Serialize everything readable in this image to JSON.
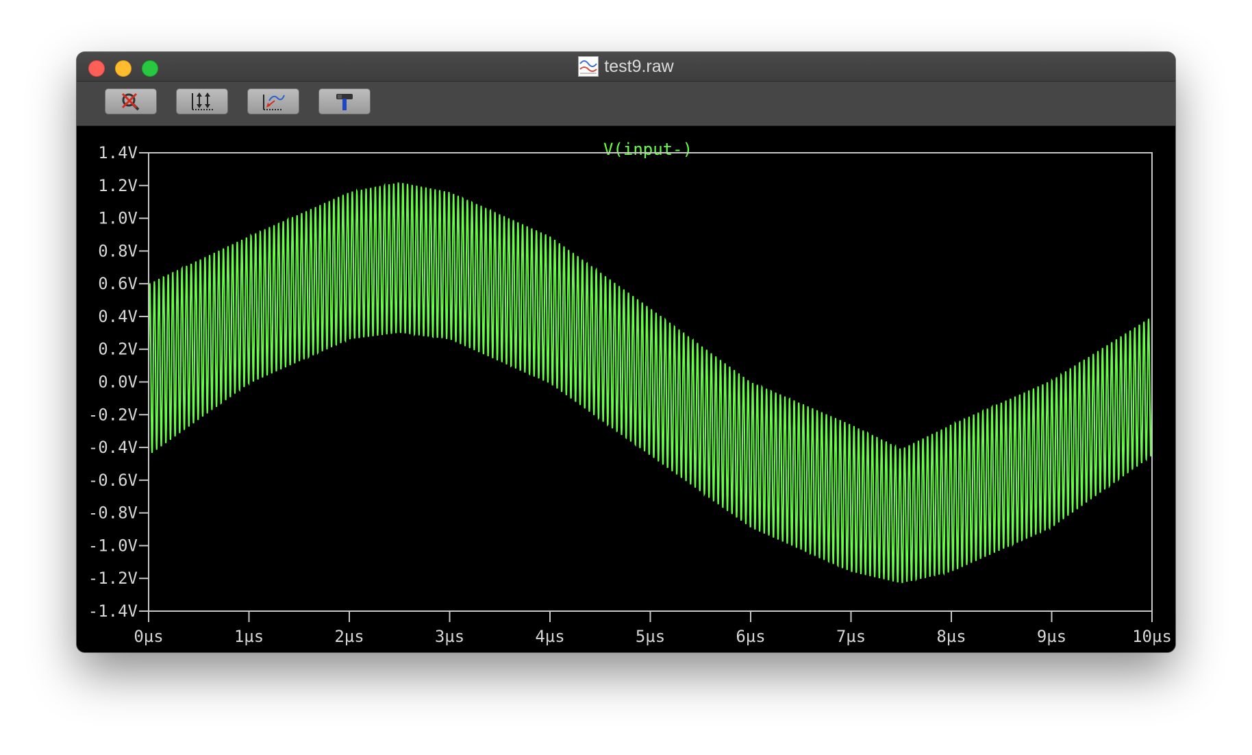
{
  "window": {
    "title": "test9.raw"
  },
  "toolbar": {
    "buttons": [
      {
        "name": "zoom-cancel-button",
        "icon": "zoom-cancel-icon"
      },
      {
        "name": "autorange-button",
        "icon": "autorange-icon"
      },
      {
        "name": "pan-button",
        "icon": "pan-icon"
      },
      {
        "name": "settings-button",
        "icon": "hammer-icon"
      }
    ]
  },
  "colors": {
    "trace": "#66ff44",
    "axis": "#c8c8c8",
    "label": "#d8d8d8",
    "background": "#000000"
  },
  "chart_data": {
    "type": "line",
    "title": "V(input-)",
    "series": [
      {
        "name": "V(input-)",
        "description": "sine envelope 0.75V amplitude, 100kHz, plus high-frequency ripple amplitude ~0.45V",
        "x_unit": "µs",
        "envelope_center": [
          [
            0,
            0.0
          ],
          [
            1,
            0.44
          ],
          [
            2,
            0.71
          ],
          [
            2.5,
            0.75
          ],
          [
            3,
            0.71
          ],
          [
            4,
            0.44
          ],
          [
            5,
            0.0
          ],
          [
            6,
            -0.44
          ],
          [
            7,
            -0.71
          ],
          [
            7.5,
            -0.75
          ],
          [
            8,
            -0.71
          ],
          [
            9,
            -0.44
          ],
          [
            10,
            0.0
          ]
        ],
        "upper": [
          [
            0,
            0.6
          ],
          [
            1,
            0.89
          ],
          [
            2,
            1.16
          ],
          [
            2.5,
            1.22
          ],
          [
            3,
            1.16
          ],
          [
            4,
            0.89
          ],
          [
            5,
            0.45
          ],
          [
            6,
            -0.0
          ],
          [
            7,
            -0.26
          ],
          [
            7.5,
            -0.41
          ],
          [
            8,
            -0.26
          ],
          [
            9,
            0.01
          ],
          [
            10,
            0.4
          ]
        ],
        "lower": [
          [
            0,
            -0.45
          ],
          [
            1,
            -0.01
          ],
          [
            2,
            0.26
          ],
          [
            2.5,
            0.3
          ],
          [
            3,
            0.26
          ],
          [
            4,
            -0.01
          ],
          [
            5,
            -0.45
          ],
          [
            6,
            -0.89
          ],
          [
            7,
            -1.16
          ],
          [
            7.5,
            -1.23
          ],
          [
            8,
            -1.16
          ],
          [
            9,
            -0.89
          ],
          [
            10,
            -0.45
          ]
        ]
      }
    ],
    "xlim": [
      0,
      10
    ],
    "ylim": [
      -1.4,
      1.4
    ],
    "x_ticks": [
      "0µs",
      "1µs",
      "2µs",
      "3µs",
      "4µs",
      "5µs",
      "6µs",
      "7µs",
      "8µs",
      "9µs",
      "10µs"
    ],
    "y_ticks": [
      "1.4V",
      "1.2V",
      "1.0V",
      "0.8V",
      "0.6V",
      "0.4V",
      "0.2V",
      "0.0V",
      "-0.2V",
      "-0.4V",
      "-0.6V",
      "-0.8V",
      "-1.0V",
      "-1.2V",
      "-1.4V"
    ],
    "grid": false
  }
}
